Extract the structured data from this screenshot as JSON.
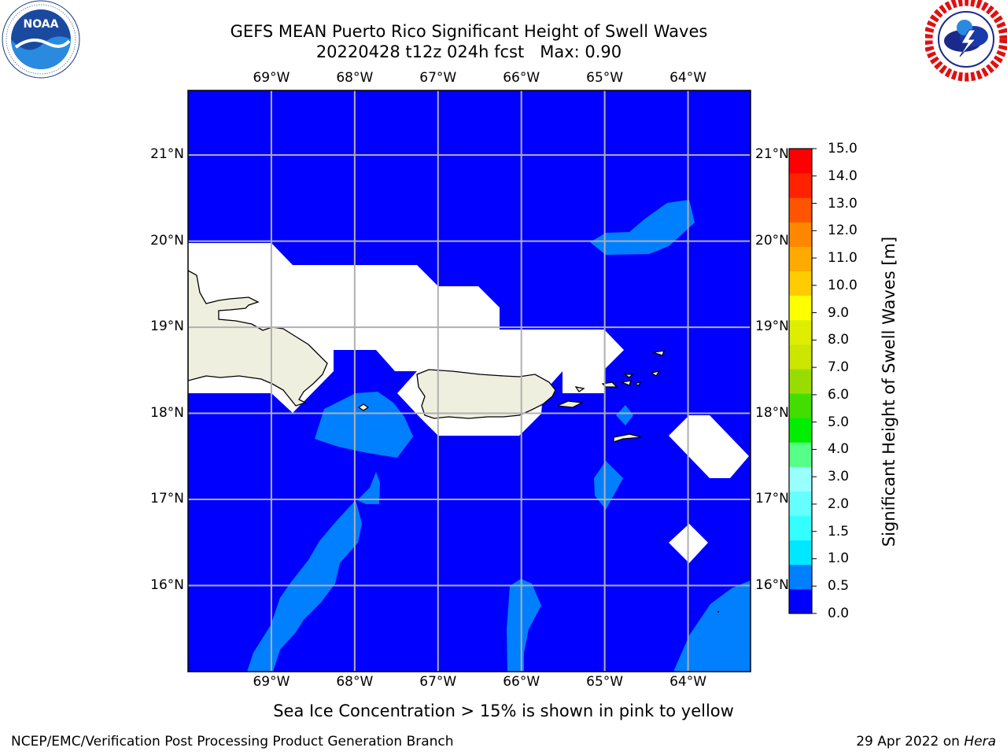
{
  "title": {
    "line1": "GEFS MEAN Puerto Rico Significant Height of Swell Waves",
    "line2": "20220428 t12z 024h fcst   Max: 0.90"
  },
  "logos": {
    "noaa": {
      "text": "NOAA",
      "ring_text": "NATIONAL OCEANIC AND ATMOSPHERIC ADMINISTRATION · U.S. DEPARTMENT OF COMMERCE"
    },
    "nws": {
      "ring_text": "NATIONAL WEATHER SERVICE"
    }
  },
  "map": {
    "lon_ticks": [
      "69°W",
      "68°W",
      "67°W",
      "66°W",
      "65°W",
      "64°W"
    ],
    "lat_ticks": [
      "21°N",
      "20°N",
      "19°N",
      "18°N",
      "17°N",
      "16°N"
    ],
    "lon_values": [
      -69,
      -68,
      -67,
      -66,
      -65,
      -64
    ],
    "lat_values": [
      21,
      20,
      19,
      18,
      17,
      16
    ],
    "extent": {
      "lon_min": -70.0,
      "lon_max": -63.25,
      "lat_min": 15.0,
      "lat_max": 21.75
    },
    "ocean_color": "#0000ff",
    "land_color": "#efefdf",
    "grid": true
  },
  "colorbar": {
    "label": "Significant Height of Swell Waves [m]",
    "levels": [
      "0.0",
      "0.5",
      "1.0",
      "1.5",
      "2.0",
      "3.0",
      "4.0",
      "5.0",
      "6.0",
      "7.0",
      "8.0",
      "9.0",
      "10.0",
      "11.0",
      "12.0",
      "13.0",
      "14.0",
      "15.0"
    ],
    "colors": [
      "#0000ff",
      "#0080ff",
      "#00e8ff",
      "#33ffff",
      "#66ffff",
      "#99ffff",
      "#55ff88",
      "#00ee00",
      "#44dd00",
      "#99dd00",
      "#cce600",
      "#ddee00",
      "#ffff00",
      "#ffcc00",
      "#ffaa00",
      "#ff8800",
      "#ff5500",
      "#ff2200",
      "#ff0000"
    ]
  },
  "caption": "Sea Ice Concentration > 15% is shown in pink to yellow",
  "footer": {
    "left": "NCEP/EMC/Verification Post Processing Product Generation Branch",
    "right_prefix": "29 Apr 2022 on ",
    "right_host": "Hera"
  }
}
